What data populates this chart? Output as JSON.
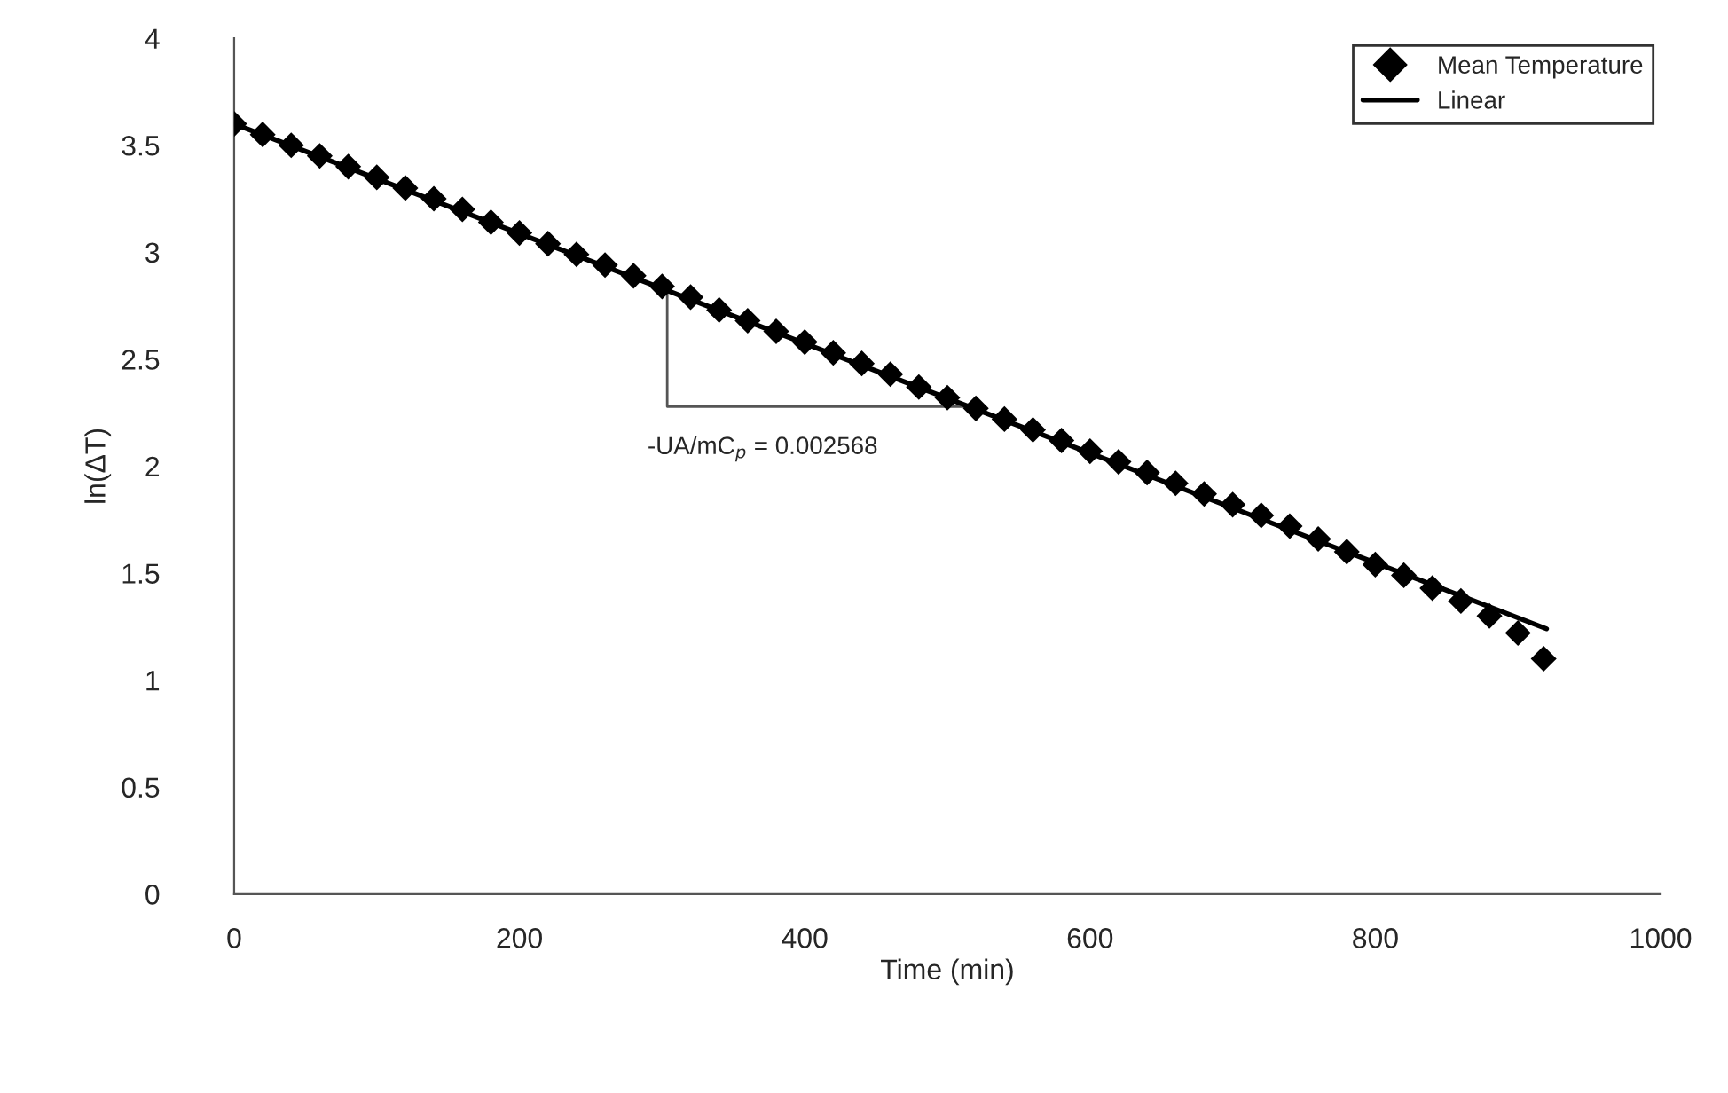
{
  "chart_data": {
    "type": "scatter",
    "xlabel": "Time (min)",
    "ylabel": "ln(ΔT)",
    "xlim": [
      0,
      1000
    ],
    "xticks": [
      0,
      200,
      400,
      600,
      800,
      1000
    ],
    "ylim": [
      0,
      4
    ],
    "yticks": [
      0,
      0.5,
      1,
      1.5,
      2,
      2.5,
      3,
      3.5,
      4
    ],
    "grid": false,
    "legend": "top right",
    "annotations": [
      "-UA/mC$_{p}$ = 0.002568"
    ],
    "series": [
      {
        "name": "Mean Temperature",
        "marker": "diamond",
        "color": "#000000",
        "x": [
          0,
          20,
          40,
          60,
          80,
          100,
          120,
          140,
          160,
          180,
          200,
          220,
          240,
          260,
          280,
          300,
          320,
          340,
          360,
          380,
          400,
          420,
          440,
          460,
          480,
          500,
          520,
          540,
          560,
          580,
          600,
          620,
          640,
          660,
          680,
          700,
          720,
          740,
          760,
          780,
          800,
          820,
          840,
          860,
          880,
          900,
          918
        ],
        "values": [
          3.6,
          3.55,
          3.5,
          3.45,
          3.4,
          3.35,
          3.3,
          3.25,
          3.2,
          3.14,
          3.09,
          3.04,
          2.99,
          2.94,
          2.89,
          2.84,
          2.79,
          2.73,
          2.68,
          2.63,
          2.58,
          2.53,
          2.48,
          2.43,
          2.37,
          2.32,
          2.27,
          2.22,
          2.17,
          2.12,
          2.07,
          2.02,
          1.97,
          1.92,
          1.87,
          1.82,
          1.77,
          1.72,
          1.66,
          1.6,
          1.54,
          1.49,
          1.43,
          1.37,
          1.3,
          1.22,
          1.1
        ]
      },
      {
        "name": "Linear",
        "type": "line",
        "marker": "none",
        "color": "#000000",
        "line_style": "solid",
        "x": [
          0,
          920
        ],
        "values": [
          3.6,
          1.24
        ]
      }
    ]
  }
}
